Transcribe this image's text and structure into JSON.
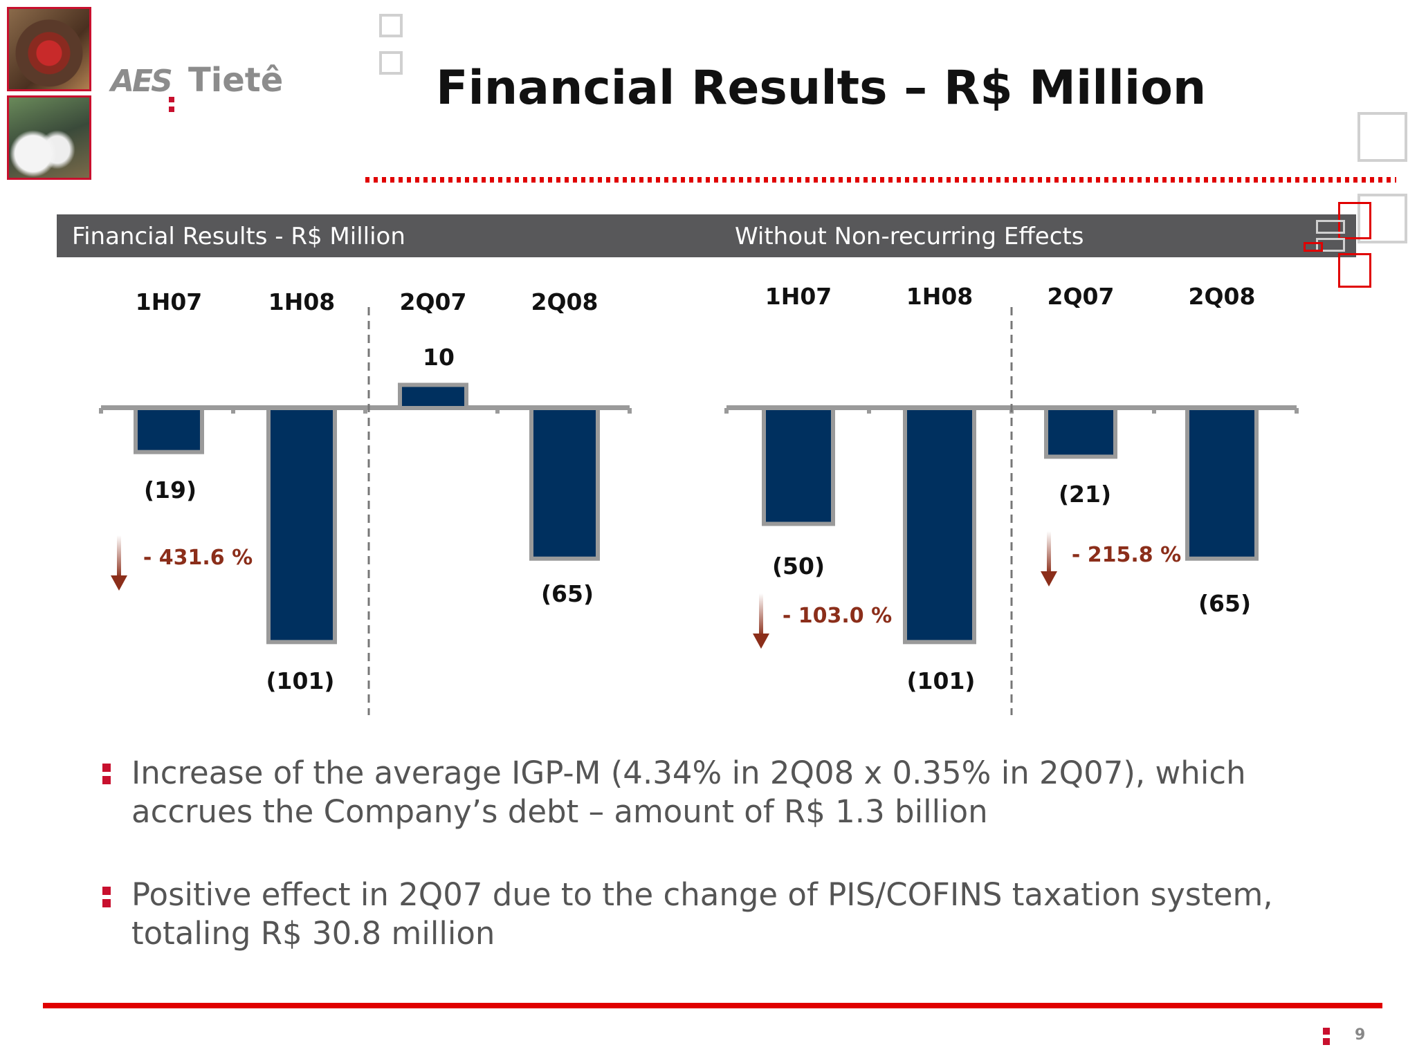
{
  "header": {
    "logo_text": "Tietê",
    "logo_mark": "AES",
    "title": "Financial Results – R$ Million"
  },
  "band": {
    "left_label": "Financial Results - R$ Million",
    "right_label": "Without Non-recurring Effects"
  },
  "chart_data": [
    {
      "type": "bar",
      "categories": [
        "1H07",
        "1H08",
        "2Q07",
        "2Q08"
      ],
      "values": [
        -19,
        -101,
        10,
        -65
      ],
      "value_labels": [
        "(19)",
        "(101)",
        "10",
        "(65)"
      ],
      "annotations": [
        {
          "text": "- 431.6 %",
          "between": [
            "1H07",
            "1H08"
          ]
        }
      ],
      "bar_color": "#00305f",
      "bar_border_color": "#9a9a9a",
      "annotation_color": "#8b2e1a"
    },
    {
      "type": "bar",
      "categories": [
        "1H07",
        "1H08",
        "2Q07",
        "2Q08"
      ],
      "values": [
        -50,
        -101,
        -21,
        -65
      ],
      "value_labels": [
        "(50)",
        "(101)",
        "(21)",
        "(65)"
      ],
      "annotations": [
        {
          "text": "- 103.0 %",
          "between": [
            "1H07",
            "1H08"
          ]
        },
        {
          "text": "- 215.8 %",
          "between": [
            "2Q07",
            "2Q08"
          ]
        }
      ],
      "bar_color": "#00305f",
      "bar_border_color": "#9a9a9a",
      "annotation_color": "#8b2e1a"
    }
  ],
  "bullets": [
    "Increase of the average IGP-M (4.34% in 2Q08 x 0.35% in 2Q07), which accrues the Company’s debt – amount of R$ 1.3 billion",
    "Positive effect in 2Q07 due to the change of PIS/COFINS taxation system, totaling R$ 30.8 million"
  ],
  "footer": {
    "page_number": "9"
  },
  "colors": {
    "accent_red": "#e00000",
    "band_gray": "#58585a"
  }
}
